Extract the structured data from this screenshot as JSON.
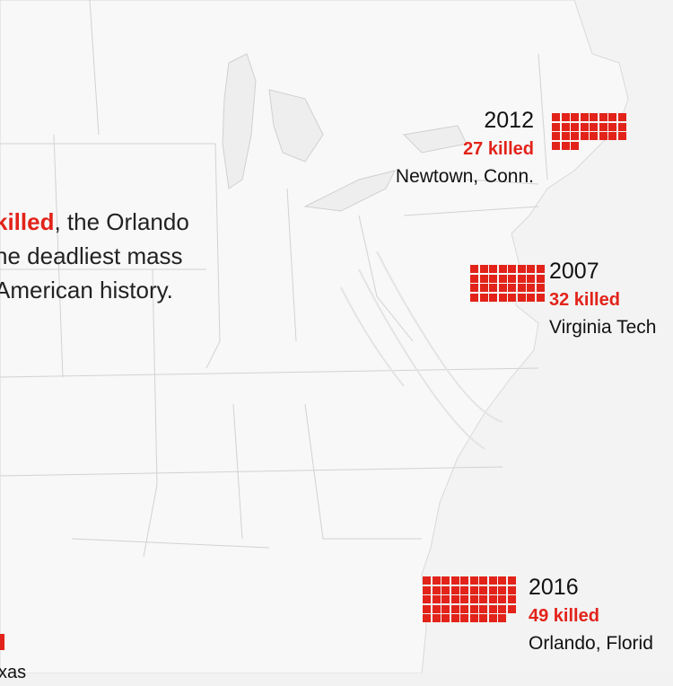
{
  "intro": {
    "highlight": "killed",
    "line1_rest": ", the Orlando",
    "line2": "he deadliest mass",
    "line3": "American history."
  },
  "events": [
    {
      "year": "2012",
      "killed_label": "27 killed",
      "place": "Newtown, Conn.",
      "count": 27
    },
    {
      "year": "2007",
      "killed_label": "32 killed",
      "place": "Virginia Tech",
      "count": 32
    },
    {
      "year": "2016",
      "killed_label": "49 killed",
      "place": "Orlando, Florid",
      "count": 49
    }
  ],
  "partial_left": {
    "place_fragment": "xas"
  },
  "colors": {
    "accent": "#e2231a",
    "land": "#f7f7f7",
    "water": "#f2f2f2",
    "border": "#cfcfcf"
  }
}
